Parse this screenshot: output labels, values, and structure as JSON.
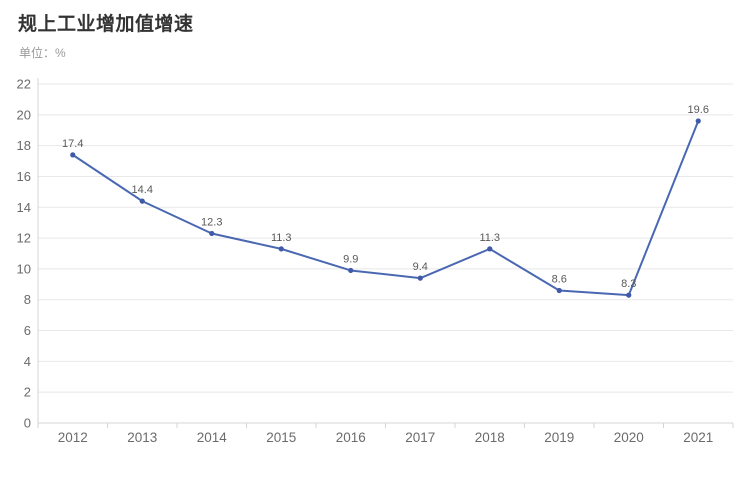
{
  "header": {
    "title": "规上工业增加值增速",
    "unit_label": "单位：%"
  },
  "colors": {
    "line": "#4a68b2",
    "point": "#3f5aa8",
    "grid": "#e8e8e8",
    "axis": "#d4d4d4",
    "tick_label": "#6b6b6b",
    "data_label": "#595959",
    "title": "#333333",
    "subtitle": "#999999",
    "background": "#ffffff"
  },
  "chart_data": {
    "type": "line",
    "title": "规上工业增加值增速",
    "xlabel": "",
    "ylabel": "单位：%",
    "categories": [
      "2012",
      "2013",
      "2014",
      "2015",
      "2016",
      "2017",
      "2018",
      "2019",
      "2020",
      "2021"
    ],
    "series": [
      {
        "name": "规上工业增加值增速",
        "values": [
          17.4,
          14.4,
          12.3,
          11.3,
          9.9,
          9.4,
          11.3,
          8.6,
          8.3,
          19.6
        ]
      }
    ],
    "ylim": [
      0,
      22
    ],
    "ytick_step": 2,
    "grid": true,
    "legend_position": "none",
    "data_labels": true
  }
}
